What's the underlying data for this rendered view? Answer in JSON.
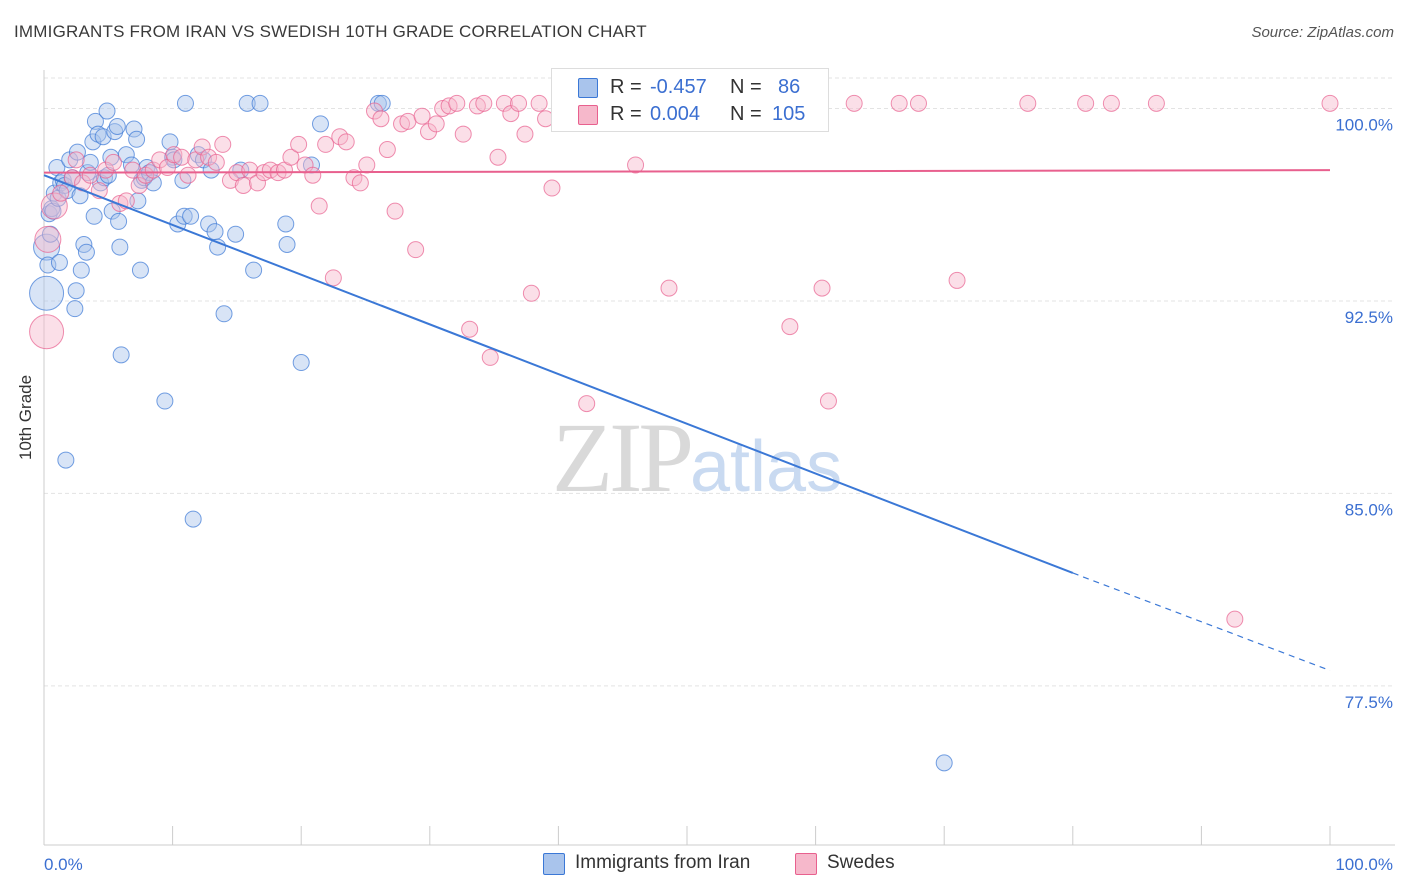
{
  "header": {
    "title": "IMMIGRANTS FROM IRAN VS SWEDISH 10TH GRADE CORRELATION CHART",
    "source": "Source: ZipAtlas.com"
  },
  "watermark": {
    "zip": "ZIP",
    "atlas": "atlas"
  },
  "legend": {
    "rows": [
      {
        "r_label": "R =",
        "r_value": "-0.457",
        "n_label": "N =",
        "n_value": "86"
      },
      {
        "r_label": "R =",
        "r_value": "0.004",
        "n_label": "N =",
        "n_value": "105"
      }
    ]
  },
  "colors": {
    "blue": "#3b78d6",
    "blue_fill": "#a9c4ec",
    "pink": "#e8608e",
    "pink_fill": "#f6b8cb",
    "axis_text": "#3b6fd1",
    "grid": "#e3e3e3"
  },
  "chart_data": {
    "type": "scatter",
    "title": "IMMIGRANTS FROM IRAN VS SWEDISH 10TH GRADE CORRELATION CHART",
    "ylabel": "10th Grade",
    "xlabel": "",
    "xlim": [
      0,
      100
    ],
    "ylim": [
      71.3,
      101.5
    ],
    "x_tick_labels": [
      "0.0%",
      "100.0%"
    ],
    "y_ticks": [
      77.5,
      85.0,
      92.5,
      100.0
    ],
    "y_tick_labels": [
      "77.5%",
      "85.0%",
      "92.5%",
      "100.0%"
    ],
    "grid": true,
    "legend_position": "top-center",
    "series": [
      {
        "name": "Immigrants from Iran",
        "color": "#3b78d6",
        "r": -0.457,
        "n": 86,
        "trend": {
          "x0": 0,
          "y0": 97.4,
          "x1": 80,
          "y1": 81.9,
          "dash_to_x": 100,
          "dash_to_y": 78.1
        },
        "points": [
          [
            0.2,
            92.8,
            3
          ],
          [
            0.2,
            94.6,
            2
          ],
          [
            0.3,
            93.9,
            1
          ],
          [
            0.4,
            95.9,
            1
          ],
          [
            0.5,
            95.1,
            1
          ],
          [
            0.6,
            96.1,
            1
          ],
          [
            0.7,
            96.0,
            1
          ],
          [
            0.8,
            96.7,
            1
          ],
          [
            1.0,
            97.7,
            1
          ],
          [
            1.1,
            96.5,
            1
          ],
          [
            1.2,
            94.0,
            1
          ],
          [
            1.3,
            97.1,
            1
          ],
          [
            1.5,
            97.2,
            1
          ],
          [
            1.6,
            97.0,
            1
          ],
          [
            1.7,
            86.3,
            1
          ],
          [
            1.8,
            96.8,
            1
          ],
          [
            2.0,
            98.0,
            1
          ],
          [
            2.2,
            97.3,
            1
          ],
          [
            2.4,
            92.2,
            1
          ],
          [
            2.5,
            92.9,
            1
          ],
          [
            2.6,
            98.3,
            1
          ],
          [
            2.8,
            96.6,
            1
          ],
          [
            2.9,
            93.7,
            1
          ],
          [
            3.1,
            94.7,
            1
          ],
          [
            3.3,
            94.4,
            1
          ],
          [
            3.4,
            97.5,
            1
          ],
          [
            3.6,
            97.9,
            1
          ],
          [
            3.8,
            98.7,
            1
          ],
          [
            3.9,
            95.8,
            1
          ],
          [
            4.0,
            99.5,
            1
          ],
          [
            4.2,
            99.0,
            1
          ],
          [
            4.4,
            97.1,
            1
          ],
          [
            4.6,
            98.9,
            1
          ],
          [
            4.7,
            97.3,
            1
          ],
          [
            4.9,
            99.9,
            1
          ],
          [
            5.0,
            97.4,
            1
          ],
          [
            5.2,
            98.1,
            1
          ],
          [
            5.3,
            96.0,
            1
          ],
          [
            5.5,
            99.1,
            1
          ],
          [
            5.7,
            99.3,
            1
          ],
          [
            5.8,
            95.6,
            1
          ],
          [
            5.9,
            94.6,
            1
          ],
          [
            6.0,
            90.4,
            1
          ],
          [
            6.4,
            98.2,
            1
          ],
          [
            6.8,
            97.8,
            1
          ],
          [
            7.0,
            99.2,
            1
          ],
          [
            7.2,
            98.8,
            1
          ],
          [
            7.3,
            96.4,
            1
          ],
          [
            7.5,
            93.7,
            1
          ],
          [
            7.6,
            97.2,
            1
          ],
          [
            7.8,
            97.3,
            1
          ],
          [
            8.0,
            97.7,
            1
          ],
          [
            8.2,
            97.5,
            1
          ],
          [
            8.5,
            97.1,
            1
          ],
          [
            9.4,
            88.6,
            1
          ],
          [
            9.8,
            98.7,
            1
          ],
          [
            10.0,
            98.1,
            1
          ],
          [
            10.1,
            98.0,
            1
          ],
          [
            10.4,
            95.5,
            1
          ],
          [
            10.8,
            97.2,
            1
          ],
          [
            10.9,
            95.8,
            1
          ],
          [
            11.0,
            100.2,
            1
          ],
          [
            11.4,
            95.8,
            1
          ],
          [
            11.6,
            84.0,
            1
          ],
          [
            12.0,
            98.2,
            1
          ],
          [
            12.4,
            98.0,
            1
          ],
          [
            12.8,
            95.5,
            1
          ],
          [
            13.0,
            97.6,
            1
          ],
          [
            13.3,
            95.2,
            1
          ],
          [
            13.5,
            94.6,
            1
          ],
          [
            14.0,
            92.0,
            1
          ],
          [
            14.9,
            95.1,
            1
          ],
          [
            15.3,
            97.6,
            1
          ],
          [
            15.8,
            100.2,
            1
          ],
          [
            16.3,
            93.7,
            1
          ],
          [
            16.8,
            100.2,
            1
          ],
          [
            18.8,
            95.5,
            1
          ],
          [
            18.9,
            94.7,
            1
          ],
          [
            20.0,
            90.1,
            1
          ],
          [
            20.8,
            97.8,
            1
          ],
          [
            21.5,
            99.4,
            1
          ],
          [
            26.0,
            100.2,
            1
          ],
          [
            26.3,
            100.2,
            1
          ],
          [
            70.0,
            74.5,
            1
          ]
        ]
      },
      {
        "name": "Swedes",
        "color": "#e8608e",
        "r": 0.004,
        "n": 105,
        "trend": {
          "x0": 0,
          "y0": 97.5,
          "x1": 100,
          "y1": 97.6
        },
        "points": [
          [
            0.2,
            91.3,
            3
          ],
          [
            0.3,
            94.9,
            2
          ],
          [
            0.8,
            96.2,
            2
          ],
          [
            1.3,
            96.7,
            1
          ],
          [
            2.2,
            97.3,
            1
          ],
          [
            2.5,
            98.0,
            1
          ],
          [
            3.0,
            97.1,
            1
          ],
          [
            3.6,
            97.4,
            1
          ],
          [
            4.3,
            96.8,
            1
          ],
          [
            4.8,
            97.6,
            1
          ],
          [
            5.4,
            97.9,
            1
          ],
          [
            5.9,
            96.3,
            1
          ],
          [
            6.4,
            96.4,
            1
          ],
          [
            6.9,
            97.6,
            1
          ],
          [
            7.4,
            97.0,
            1
          ],
          [
            7.9,
            97.4,
            1
          ],
          [
            8.5,
            97.6,
            1
          ],
          [
            9.0,
            98.0,
            1
          ],
          [
            9.6,
            97.7,
            1
          ],
          [
            10.1,
            98.2,
            1
          ],
          [
            10.7,
            98.1,
            1
          ],
          [
            11.2,
            97.4,
            1
          ],
          [
            11.8,
            98.0,
            1
          ],
          [
            12.3,
            98.5,
            1
          ],
          [
            12.8,
            98.1,
            1
          ],
          [
            13.4,
            97.9,
            1
          ],
          [
            13.9,
            98.6,
            1
          ],
          [
            14.5,
            97.2,
            1
          ],
          [
            15.0,
            97.5,
            1
          ],
          [
            15.5,
            97.0,
            1
          ],
          [
            16.0,
            97.6,
            1
          ],
          [
            16.6,
            97.1,
            1
          ],
          [
            17.1,
            97.5,
            1
          ],
          [
            17.6,
            97.6,
            1
          ],
          [
            18.2,
            97.5,
            1
          ],
          [
            18.7,
            97.6,
            1
          ],
          [
            19.2,
            98.1,
            1
          ],
          [
            19.8,
            98.6,
            1
          ],
          [
            20.3,
            97.8,
            1
          ],
          [
            20.9,
            97.4,
            1
          ],
          [
            21.4,
            96.2,
            1
          ],
          [
            21.9,
            98.6,
            1
          ],
          [
            22.5,
            93.4,
            1
          ],
          [
            23.0,
            98.9,
            1
          ],
          [
            23.5,
            98.7,
            1
          ],
          [
            24.1,
            97.3,
            1
          ],
          [
            24.6,
            97.1,
            1
          ],
          [
            25.1,
            97.8,
            1
          ],
          [
            25.7,
            99.9,
            1
          ],
          [
            26.2,
            99.6,
            1
          ],
          [
            26.7,
            98.4,
            1
          ],
          [
            27.3,
            96.0,
            1
          ],
          [
            27.8,
            99.4,
            1
          ],
          [
            28.3,
            99.5,
            1
          ],
          [
            28.9,
            94.5,
            1
          ],
          [
            29.4,
            99.7,
            1
          ],
          [
            29.9,
            99.1,
            1
          ],
          [
            30.5,
            99.4,
            1
          ],
          [
            31.0,
            100.0,
            1
          ],
          [
            31.5,
            100.1,
            1
          ],
          [
            32.1,
            100.2,
            1
          ],
          [
            32.6,
            99.0,
            1
          ],
          [
            33.1,
            91.4,
            1
          ],
          [
            33.7,
            100.1,
            1
          ],
          [
            34.2,
            100.2,
            1
          ],
          [
            34.7,
            90.3,
            1
          ],
          [
            35.3,
            98.1,
            1
          ],
          [
            35.8,
            100.2,
            1
          ],
          [
            36.3,
            99.8,
            1
          ],
          [
            36.9,
            100.2,
            1
          ],
          [
            37.4,
            99.0,
            1
          ],
          [
            37.9,
            92.8,
            1
          ],
          [
            38.5,
            100.2,
            1
          ],
          [
            39.0,
            99.6,
            1
          ],
          [
            39.5,
            96.9,
            1
          ],
          [
            40.1,
            100.1,
            1
          ],
          [
            40.6,
            100.2,
            1
          ],
          [
            41.1,
            100.2,
            1
          ],
          [
            41.7,
            100.1,
            1
          ],
          [
            42.2,
            88.5,
            1
          ],
          [
            44.0,
            99.8,
            1
          ],
          [
            45.0,
            100.2,
            1
          ],
          [
            46.0,
            97.8,
            1
          ],
          [
            47.3,
            100.2,
            1
          ],
          [
            48.0,
            100.2,
            1
          ],
          [
            48.6,
            93.0,
            1
          ],
          [
            50.0,
            100.2,
            1
          ],
          [
            52.0,
            100.2,
            1
          ],
          [
            53.5,
            100.2,
            1
          ],
          [
            55.0,
            100.2,
            1
          ],
          [
            56.4,
            100.2,
            1
          ],
          [
            58.0,
            91.5,
            1
          ],
          [
            59.0,
            100.2,
            1
          ],
          [
            60.5,
            93.0,
            1
          ],
          [
            61.0,
            88.6,
            1
          ],
          [
            63.0,
            100.2,
            1
          ],
          [
            66.5,
            100.2,
            1
          ],
          [
            68.0,
            100.2,
            1
          ],
          [
            71.0,
            93.3,
            1
          ],
          [
            76.5,
            100.2,
            1
          ],
          [
            81.0,
            100.2,
            1
          ],
          [
            92.6,
            80.1,
            1
          ],
          [
            100.0,
            100.2,
            1
          ],
          [
            86.5,
            100.2,
            1
          ],
          [
            83.0,
            100.2,
            1
          ]
        ]
      }
    ]
  }
}
